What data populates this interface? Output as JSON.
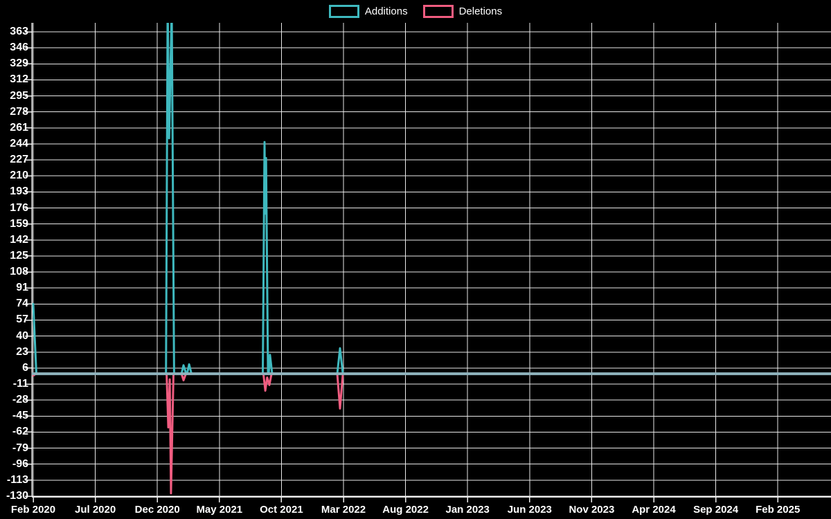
{
  "legend": {
    "additions_label": "Additions",
    "deletions_label": "Deletions"
  },
  "colors": {
    "additions": "#3fb9bf",
    "deletions": "#f05c80",
    "zero_line": "#8fb3bd",
    "grid": "#e9e9e9",
    "axis": "#f0f0f0",
    "background": "#000000",
    "text": "#ffffff"
  },
  "chart_data": {
    "type": "line",
    "title": "",
    "xlabel": "",
    "ylabel": "",
    "legend_position": "top-center",
    "grid": true,
    "x_tick_labels": [
      "Feb 2020",
      "Jul 2020",
      "Dec 2020",
      "May 2021",
      "Oct 2021",
      "Mar 2022",
      "Aug 2022",
      "Jan 2023",
      "Jun 2023",
      "Nov 2023",
      "Apr 2024",
      "Sep 2024",
      "Feb 2025"
    ],
    "x_tick_step_months": 5,
    "y_ticks": [
      363,
      346,
      329,
      312,
      295,
      278,
      261,
      244,
      227,
      210,
      193,
      176,
      159,
      142,
      125,
      108,
      91,
      74,
      57,
      40,
      23,
      6,
      -11,
      -28,
      -45,
      -62,
      -79,
      -96,
      -113,
      -130
    ],
    "ylim": [
      -130,
      372
    ],
    "xlim_months": [
      0,
      64.3
    ],
    "series": [
      {
        "name": "Additions",
        "color_key": "additions",
        "points": [
          [
            0,
            74
          ],
          [
            0.25,
            0
          ],
          [
            10.7,
            0
          ],
          [
            10.83,
            392
          ],
          [
            10.95,
            250
          ],
          [
            11.16,
            390
          ],
          [
            11.35,
            0
          ],
          [
            11.95,
            0
          ],
          [
            12.11,
            9
          ],
          [
            12.32,
            0
          ],
          [
            12.4,
            0
          ],
          [
            12.56,
            10
          ],
          [
            12.75,
            0
          ],
          [
            18.5,
            0
          ],
          [
            18.64,
            246
          ],
          [
            18.7,
            170
          ],
          [
            18.76,
            229
          ],
          [
            18.92,
            0
          ],
          [
            18.98,
            0
          ],
          [
            19.08,
            20
          ],
          [
            19.25,
            0
          ],
          [
            24.5,
            0
          ],
          [
            24.72,
            27
          ],
          [
            24.95,
            0
          ],
          [
            64.3,
            0
          ]
        ]
      },
      {
        "name": "Deletions",
        "color_key": "deletions",
        "points": [
          [
            0,
            -2
          ],
          [
            0.2,
            0
          ],
          [
            10.75,
            0
          ],
          [
            10.88,
            -57
          ],
          [
            11.0,
            -6
          ],
          [
            11.1,
            -127
          ],
          [
            11.3,
            0
          ],
          [
            11.95,
            0
          ],
          [
            12.11,
            -7
          ],
          [
            12.3,
            0
          ],
          [
            18.55,
            0
          ],
          [
            18.7,
            -18
          ],
          [
            18.85,
            -4
          ],
          [
            19.03,
            -12
          ],
          [
            19.2,
            0
          ],
          [
            24.5,
            0
          ],
          [
            24.72,
            -37
          ],
          [
            24.95,
            0
          ],
          [
            64.3,
            0
          ]
        ]
      }
    ]
  }
}
